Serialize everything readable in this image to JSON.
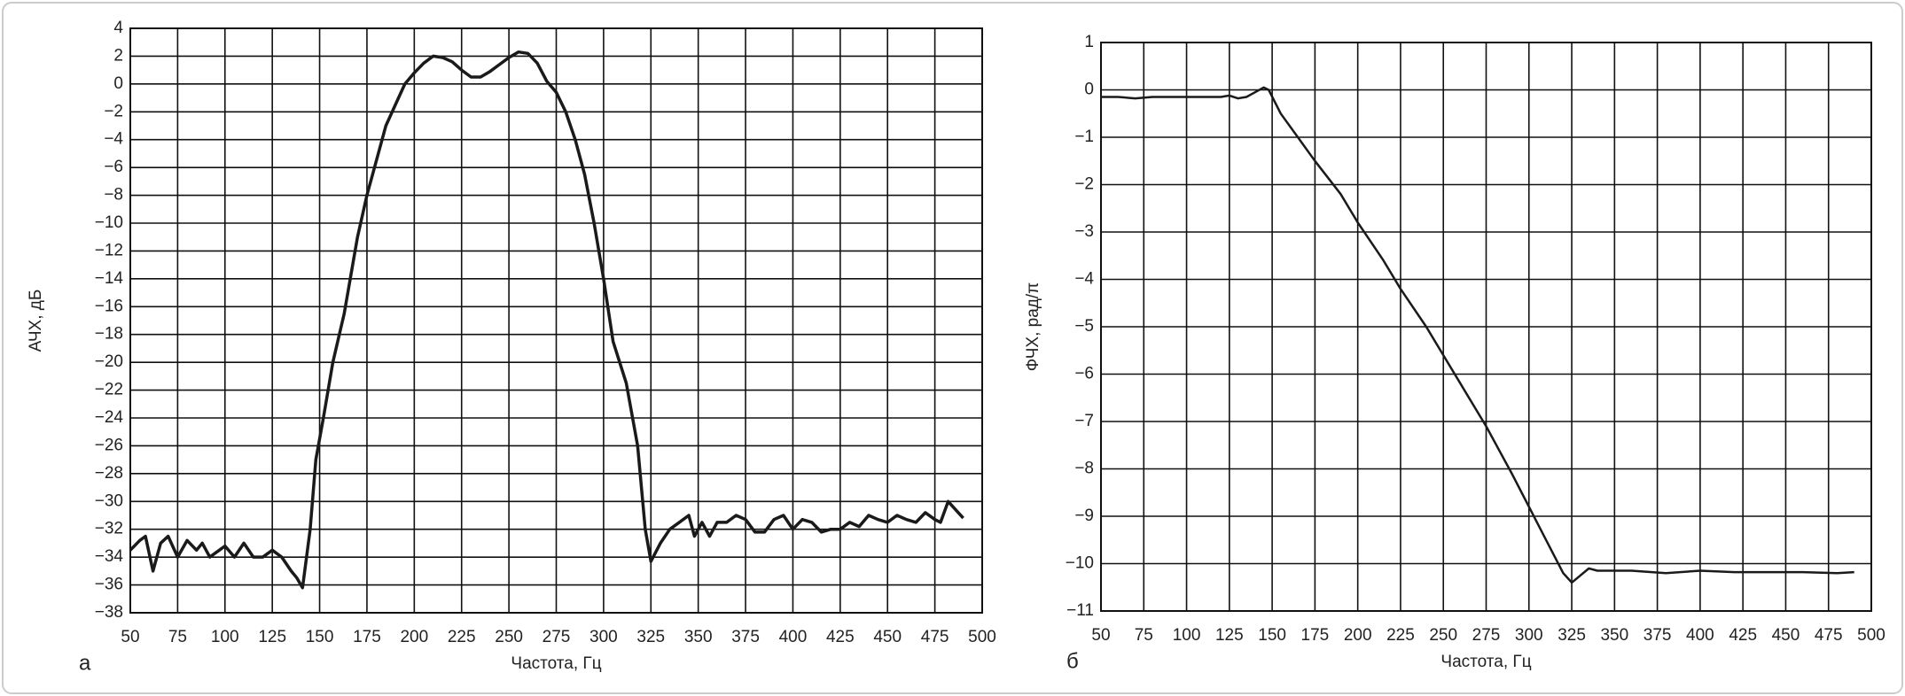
{
  "chart_data": [
    {
      "type": "line",
      "label": "а",
      "xlabel": "Частота, Гц",
      "ylabel": "АЧХ, дБ",
      "xlim": [
        50,
        500
      ],
      "xticks": [
        50,
        75,
        100,
        125,
        150,
        175,
        200,
        225,
        250,
        275,
        300,
        325,
        350,
        375,
        400,
        425,
        450,
        475,
        500
      ],
      "ylim": [
        -38,
        4
      ],
      "yticks": [
        4,
        2,
        0,
        {
          "value": -2,
          "label": "−2"
        },
        {
          "value": -4,
          "label": "−4"
        },
        {
          "value": -6,
          "label": "−6"
        },
        {
          "value": -8,
          "label": "−8"
        },
        {
          "value": -10,
          "label": "−10"
        },
        {
          "value": -12,
          "label": "−12"
        },
        {
          "value": -14,
          "label": "−14"
        },
        {
          "value": -16,
          "label": "−16"
        },
        {
          "value": -18,
          "label": "−18"
        },
        {
          "value": -20,
          "label": "−20"
        },
        {
          "value": -22,
          "label": "−22"
        },
        {
          "value": -24,
          "label": "−24"
        },
        {
          "value": -26,
          "label": "−26"
        },
        {
          "value": -28,
          "label": "−28"
        },
        {
          "value": -30,
          "label": "−30"
        },
        {
          "value": -32,
          "label": "−32"
        },
        {
          "value": -34,
          "label": "−34"
        },
        {
          "value": -36,
          "label": "−36"
        },
        {
          "value": -38,
          "label": "−38"
        }
      ],
      "grid": true,
      "x": [
        50,
        55,
        58,
        62,
        66,
        70,
        75,
        80,
        85,
        88,
        92,
        97,
        100,
        105,
        110,
        115,
        120,
        125,
        130,
        135,
        138,
        141,
        145,
        148,
        152,
        157,
        163,
        170,
        175,
        180,
        185,
        190,
        195,
        200,
        205,
        210,
        215,
        220,
        225,
        230,
        235,
        240,
        245,
        250,
        255,
        260,
        265,
        270,
        275,
        280,
        285,
        290,
        295,
        300,
        305,
        312,
        318,
        322,
        325,
        330,
        335,
        340,
        345,
        348,
        352,
        356,
        360,
        365,
        370,
        375,
        380,
        385,
        390,
        395,
        400,
        405,
        410,
        415,
        420,
        425,
        430,
        435,
        440,
        445,
        450,
        455,
        460,
        465,
        470,
        475,
        478,
        482,
        490
      ],
      "series": [
        {
          "color": "#1a1a1a",
          "values": [
            -33.5,
            -32.8,
            -32.5,
            -35,
            -33,
            -32.5,
            -34,
            -32.8,
            -33.5,
            -33,
            -34,
            -33.5,
            -33.2,
            -34,
            -33,
            -34,
            -34,
            -33.5,
            -34,
            -35,
            -35.5,
            -36.2,
            -32,
            -27,
            -24,
            -20,
            -16.5,
            -11,
            -8,
            -5.5,
            -3,
            -1.5,
            0,
            0.8,
            1.5,
            2,
            1.9,
            1.6,
            1,
            0.5,
            0.5,
            0.9,
            1.4,
            1.9,
            2.3,
            2.2,
            1.5,
            0.2,
            -0.6,
            -2,
            -4,
            -6.5,
            -10,
            -14,
            -18.5,
            -21.5,
            -26,
            -32,
            -34.3,
            -33,
            -32,
            -31.5,
            -31,
            -32.5,
            -31.5,
            -32.5,
            -31.5,
            -31.5,
            -31,
            -31.3,
            -32.2,
            -32.2,
            -31.3,
            -31,
            -32,
            -31.3,
            -31.5,
            -32.2,
            -32,
            -32,
            -31.5,
            -31.8,
            -31,
            -31.3,
            -31.5,
            -31,
            -31.3,
            -31.5,
            -30.8,
            -31.3,
            -31.5,
            -30,
            -31.2
          ]
        }
      ]
    },
    {
      "type": "line",
      "label": "б",
      "xlabel": "Частота, Гц",
      "ylabel": "ФЧХ, рад/π",
      "xlim": [
        50,
        500
      ],
      "xticks": [
        50,
        75,
        100,
        125,
        150,
        175,
        200,
        225,
        250,
        275,
        300,
        325,
        350,
        375,
        400,
        425,
        450,
        475,
        500
      ],
      "ylim": [
        -11,
        1
      ],
      "yticks": [
        1,
        0,
        {
          "value": -1,
          "label": "−1"
        },
        {
          "value": -2,
          "label": "−2"
        },
        {
          "value": -3,
          "label": "−3"
        },
        {
          "value": -4,
          "label": "−4"
        },
        {
          "value": -5,
          "label": "−5"
        },
        {
          "value": -6,
          "label": "−6"
        },
        {
          "value": -7,
          "label": "−7"
        },
        {
          "value": -8,
          "label": "−8"
        },
        {
          "value": -9,
          "label": "−9"
        },
        {
          "value": -10,
          "label": "−10"
        },
        {
          "value": -11,
          "label": "−11"
        }
      ],
      "grid": true,
      "x": [
        50,
        60,
        70,
        80,
        100,
        120,
        125,
        130,
        135,
        140,
        145,
        148,
        155,
        165,
        175,
        190,
        200,
        215,
        225,
        240,
        250,
        260,
        275,
        290,
        300,
        310,
        320,
        325,
        330,
        335,
        340,
        360,
        380,
        400,
        420,
        440,
        460,
        480,
        490
      ],
      "series": [
        {
          "color": "#1a1a1a",
          "values": [
            -0.15,
            -0.15,
            -0.18,
            -0.15,
            -0.15,
            -0.15,
            -0.12,
            -0.18,
            -0.15,
            -0.05,
            0.05,
            0,
            -0.5,
            -1,
            -1.5,
            -2.2,
            -2.8,
            -3.6,
            -4.2,
            -5,
            -5.6,
            -6.2,
            -7.1,
            -8.1,
            -8.8,
            -9.5,
            -10.2,
            -10.4,
            -10.25,
            -10.1,
            -10.15,
            -10.15,
            -10.2,
            -10.15,
            -10.18,
            -10.18,
            -10.18,
            -10.2,
            -10.18
          ]
        }
      ]
    }
  ]
}
